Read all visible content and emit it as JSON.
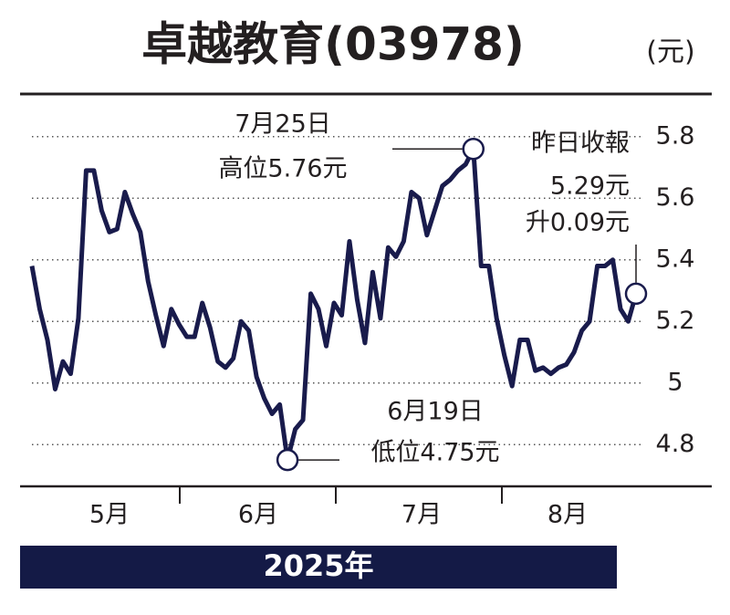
{
  "chart_data": {
    "type": "line",
    "title": "卓越教育(03978)",
    "unit": "(元)",
    "values": [
      5.38,
      5.24,
      5.14,
      4.98,
      5.07,
      5.03,
      5.21,
      5.69,
      5.69,
      5.56,
      5.49,
      5.5,
      5.62,
      5.55,
      5.49,
      5.33,
      5.22,
      5.12,
      5.24,
      5.19,
      5.15,
      5.15,
      5.26,
      5.18,
      5.07,
      5.05,
      5.08,
      5.2,
      5.17,
      5.02,
      4.95,
      4.9,
      4.93,
      4.75,
      4.85,
      4.88,
      5.29,
      5.24,
      5.12,
      5.26,
      5.22,
      5.46,
      5.27,
      5.13,
      5.36,
      5.21,
      5.44,
      5.41,
      5.46,
      5.62,
      5.6,
      5.48,
      5.56,
      5.64,
      5.66,
      5.69,
      5.71,
      5.76,
      5.38,
      5.38,
      5.21,
      5.09,
      4.99,
      5.14,
      5.14,
      5.04,
      5.05,
      5.03,
      5.05,
      5.06,
      5.1,
      5.17,
      5.2,
      5.38,
      5.38,
      5.4,
      5.24,
      5.2,
      5.29
    ],
    "color": "#191b4c",
    "ylim": [
      4.7,
      5.9
    ],
    "yticks": [
      4.8,
      5.0,
      5.2,
      5.4,
      5.6,
      5.8
    ],
    "grid": true,
    "months": [
      "5月",
      "6月",
      "7月",
      "8月"
    ],
    "year": "2025年",
    "annotations": [
      {
        "index": 57,
        "lines": [
          "7月25日",
          "高位5.76元"
        ]
      },
      {
        "index": 33,
        "lines": [
          "6月19日",
          "低位4.75元"
        ]
      },
      {
        "index": 78,
        "lines": [
          "昨日收報",
          "5.29元",
          "升0.09元"
        ]
      }
    ]
  }
}
